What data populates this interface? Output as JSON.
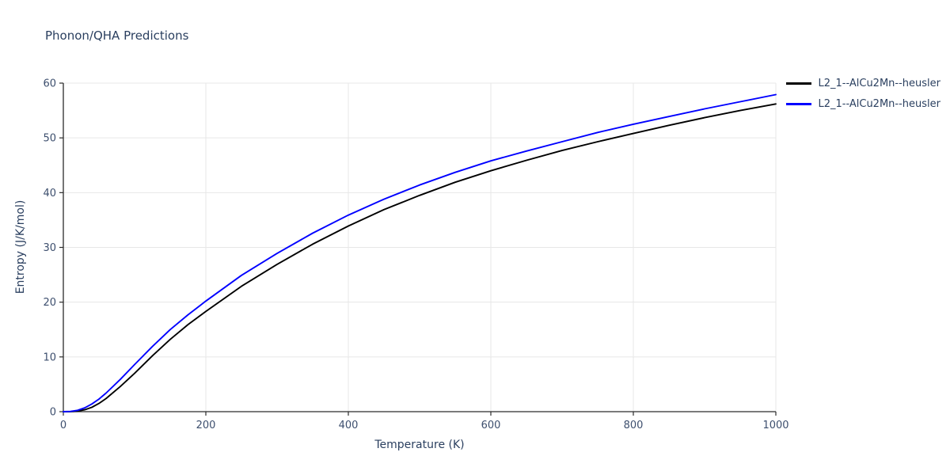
{
  "chart_data": {
    "type": "line",
    "title": "Phonon/QHA Predictions",
    "xlabel": "Temperature (K)",
    "ylabel": "Entropy (J/K/mol)",
    "xlim": [
      0,
      1000
    ],
    "ylim": [
      0,
      60
    ],
    "xticks": [
      0,
      200,
      400,
      600,
      800,
      1000
    ],
    "yticks": [
      0,
      10,
      20,
      30,
      40,
      50,
      60
    ],
    "grid": true,
    "legend_position": "top-right-outside",
    "x": [
      0,
      10,
      20,
      30,
      40,
      50,
      60,
      80,
      100,
      125,
      150,
      175,
      200,
      250,
      300,
      350,
      400,
      450,
      500,
      550,
      600,
      650,
      700,
      750,
      800,
      850,
      900,
      950,
      1000
    ],
    "series": [
      {
        "name": "L2_1--AlCu2Mn--heusler",
        "color": "#000000",
        "values": [
          0,
          0.02,
          0.1,
          0.35,
          0.8,
          1.5,
          2.4,
          4.6,
          7.0,
          10.2,
          13.2,
          15.9,
          18.3,
          22.9,
          26.9,
          30.6,
          33.9,
          36.9,
          39.5,
          41.9,
          44.0,
          45.9,
          47.7,
          49.3,
          50.8,
          52.3,
          53.7,
          55.0,
          56.2
        ]
      },
      {
        "name": "L2_1--AlCu2Mn--heusler",
        "color": "#0000ff",
        "values": [
          0,
          0.05,
          0.25,
          0.7,
          1.4,
          2.3,
          3.4,
          5.9,
          8.6,
          11.9,
          15.0,
          17.7,
          20.2,
          24.9,
          28.9,
          32.6,
          35.9,
          38.8,
          41.4,
          43.7,
          45.8,
          47.6,
          49.3,
          51.0,
          52.5,
          53.9,
          55.3,
          56.6,
          57.9
        ]
      }
    ],
    "colors": {
      "grid": "#e7e7e7",
      "axis": "#2b2b2b",
      "tick_label": "#3d4f6e",
      "title": "#2a3f5f"
    }
  }
}
